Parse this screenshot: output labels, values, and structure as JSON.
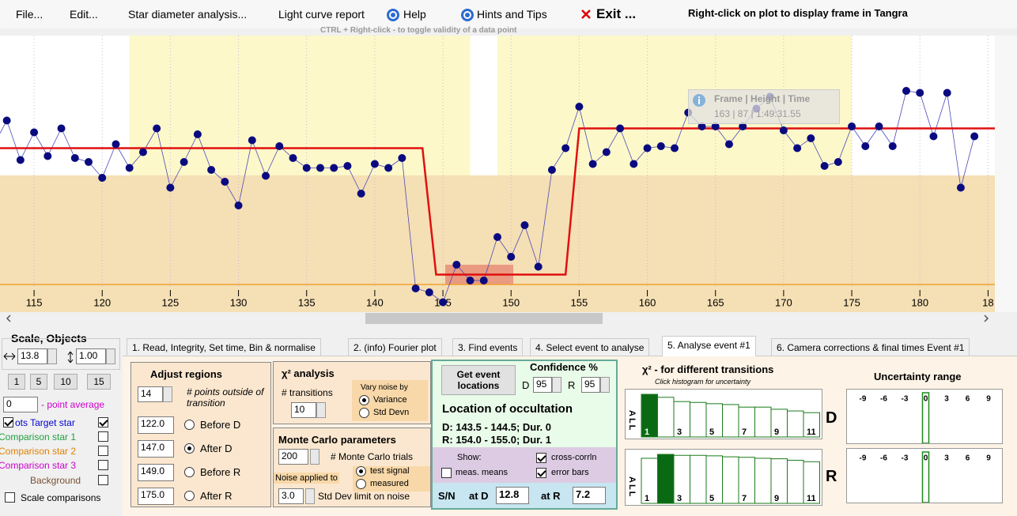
{
  "menu": {
    "items": [
      "File...",
      "Edit...",
      "Star diameter analysis...",
      "Light curve report",
      "Help",
      "Hints and Tips",
      "Exit ..."
    ],
    "hint": "Right-click on plot to display frame in Tangra"
  },
  "plot": {
    "hint": "CTRL + Right-click  -  to toggle validity of a data point",
    "xlim": [
      112.5,
      185.5
    ],
    "ylim": [
      -14,
      126
    ],
    "xticks": [
      115,
      120,
      125,
      130,
      135,
      140,
      145,
      150,
      155,
      160,
      165,
      170,
      175,
      180,
      {
        "value": 185,
        "label": "18"
      }
    ],
    "frames": [
      112,
      113,
      114,
      115,
      116,
      117,
      118,
      119,
      120,
      121,
      122,
      123,
      124,
      125,
      126,
      127,
      128,
      129,
      130,
      131,
      132,
      133,
      134,
      135,
      136,
      137,
      138,
      139,
      140,
      141,
      142,
      143,
      144,
      145,
      146,
      147,
      148,
      149,
      150,
      151,
      152,
      153,
      154,
      155,
      156,
      157,
      158,
      159,
      160,
      161,
      162,
      163,
      164,
      165,
      166,
      167,
      168,
      169,
      170,
      171,
      172,
      173,
      174,
      175,
      176,
      177,
      178,
      179,
      180,
      181,
      182,
      183,
      184
    ],
    "heights": [
      70,
      83,
      63,
      77,
      65,
      79,
      64,
      62,
      54,
      71,
      59,
      67,
      79,
      49,
      62,
      76,
      58,
      52,
      40,
      73,
      55,
      70,
      64,
      59,
      59,
      59,
      60,
      46,
      61,
      59,
      64,
      -2,
      -4,
      -9,
      10,
      2,
      2,
      24,
      14,
      30,
      9,
      58,
      69,
      90,
      61,
      67,
      79,
      61,
      69,
      70,
      69,
      87,
      80,
      80,
      71,
      80,
      89,
      95,
      78,
      69,
      74,
      60,
      62,
      80,
      70,
      80,
      70,
      98,
      97,
      75,
      97,
      49,
      75
    ],
    "model": {
      "frames": [
        112.5,
        143.5,
        144.5,
        154.0,
        155.0,
        185.5
      ],
      "heights": [
        69,
        69,
        5,
        5,
        79,
        79
      ]
    },
    "tooltip": {
      "header": "Frame | Height | Time",
      "row": "163 | 87 | 1:49:31.55"
    }
  },
  "left": {
    "title": "Scale,  Objects",
    "xscale": "13.8",
    "yscale": "1.00",
    "buttons": [
      "1",
      "5",
      "10",
      "15"
    ],
    "average": "0",
    "average_label": "- point average",
    "objects": [
      "ots  Target star",
      "Comparison star 1",
      "Comparison star 2",
      "Comparison star 3",
      "Background",
      "Scale comparisons"
    ]
  },
  "tabs": [
    "1.  Read, Integrity, Set time, Bin & normalise",
    "2. (info)  Fourier plot",
    "3. Find events",
    "4. Select event to analyse",
    "5. Analyse event #1",
    "6. Camera corrections & final times Event #1"
  ],
  "adjust": {
    "title": "Adjust regions",
    "points": "14",
    "points_label": "# points outside of transition",
    "regions": [
      {
        "value": 122.0,
        "label": "122.0",
        "name": "Before D"
      },
      {
        "value": 147.0,
        "label": "147.0",
        "name": "After D"
      },
      {
        "value": 149.0,
        "label": "149.0",
        "name": "Before R"
      },
      {
        "value": 175.0,
        "label": "175.0",
        "name": "After R"
      }
    ]
  },
  "chi": {
    "title": "χ² analysis",
    "transitions_label": "# transitions",
    "transitions": "10",
    "vary": "Vary noise by",
    "options": [
      "Variance",
      "Std Devn"
    ]
  },
  "monte": {
    "title": "Monte Carlo parameters",
    "trials": "200",
    "trials_label": "# Monte Carlo trials",
    "noise": "Noise applied to",
    "options": [
      "test signal",
      "measured"
    ],
    "limit": "3.0",
    "limit_label": "Std Dev limit on noise"
  },
  "event": {
    "button": "Get event locations",
    "confidence": "Confidence %",
    "d": "D",
    "d_value": "95",
    "r": "R",
    "r_value": "95",
    "heading": "Location of occultation",
    "d_line": "D: 143.5 - 144.5; Dur. 0",
    "r_line": "R: 154.0 - 155.0; Dur. 1",
    "show": "Show:",
    "cross": "cross-corrln",
    "means": "meas. means",
    "errors": "error bars",
    "sn": "S/N",
    "at_d": "at D",
    "sn_d": "12.8",
    "at_r": "at R",
    "sn_r": "7.2"
  },
  "histogram": {
    "title": "χ² - for different transitions",
    "subtitle": "Click histogram for uncertainty",
    "side": "ALL",
    "labels": [
      1,
      3,
      5,
      7,
      9,
      11
    ],
    "d_values": [
      100,
      93,
      83,
      81,
      78,
      76,
      70,
      70,
      65,
      61,
      57
    ],
    "r_values": [
      92,
      100,
      98,
      98,
      97,
      95,
      94,
      92,
      91,
      88,
      85
    ]
  },
  "uncertainty": {
    "title": "Uncertainty range",
    "labels": [
      -9,
      -6,
      -3,
      0,
      3,
      6,
      9
    ],
    "d": "D",
    "r": "R"
  }
}
